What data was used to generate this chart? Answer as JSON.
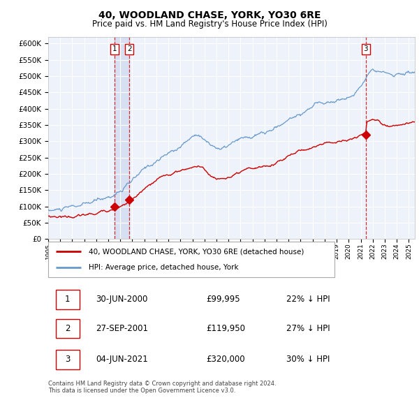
{
  "title": "40, WOODLAND CHASE, YORK, YO30 6RE",
  "subtitle": "Price paid vs. HM Land Registry's House Price Index (HPI)",
  "ylim": [
    0,
    620000
  ],
  "yticks": [
    0,
    50000,
    100000,
    150000,
    200000,
    250000,
    300000,
    350000,
    400000,
    450000,
    500000,
    550000,
    600000
  ],
  "xlim_start": 1995.0,
  "xlim_end": 2025.5,
  "hpi_color": "#6699cc",
  "price_color": "#cc0000",
  "vline_color": "#cc0000",
  "background_color": "#ffffff",
  "plot_bg_color": "#eef2fa",
  "grid_color": "#ffffff",
  "transactions": [
    {
      "label": "1",
      "date_str": "30-JUN-2000",
      "year": 2000.5,
      "price": 99995,
      "pct": "22% ↓ HPI"
    },
    {
      "label": "2",
      "date_str": "27-SEP-2001",
      "year": 2001.75,
      "price": 119950,
      "pct": "27% ↓ HPI"
    },
    {
      "label": "3",
      "date_str": "04-JUN-2021",
      "year": 2021.42,
      "price": 320000,
      "pct": "30% ↓ HPI"
    }
  ],
  "legend_property_label": "40, WOODLAND CHASE, YORK, YO30 6RE (detached house)",
  "legend_hpi_label": "HPI: Average price, detached house, York",
  "footer": "Contains HM Land Registry data © Crown copyright and database right 2024.\nThis data is licensed under the Open Government Licence v3.0.",
  "title_fontsize": 10,
  "subtitle_fontsize": 8.5
}
